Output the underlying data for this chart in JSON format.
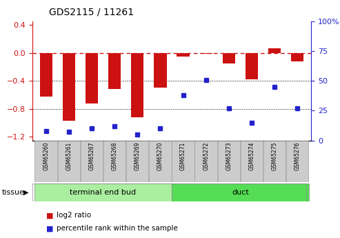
{
  "title": "GDS2115 / 11261",
  "samples": [
    "GSM65260",
    "GSM65261",
    "GSM65267",
    "GSM65268",
    "GSM65269",
    "GSM65270",
    "GSM65271",
    "GSM65272",
    "GSM65273",
    "GSM65274",
    "GSM65275",
    "GSM65276"
  ],
  "log2_ratio": [
    -0.62,
    -0.97,
    -0.72,
    -0.52,
    -0.92,
    -0.5,
    -0.05,
    -0.01,
    -0.15,
    -0.38,
    0.07,
    -0.12
  ],
  "percentile_rank": [
    8,
    7,
    10,
    12,
    5,
    10,
    38,
    51,
    27,
    15,
    45,
    27
  ],
  "bar_color": "#cc1111",
  "dot_color": "#2222cc",
  "ylim_left": [
    -1.25,
    0.45
  ],
  "ylim_right": [
    0,
    100
  ],
  "yticks_left": [
    -1.2,
    -0.8,
    -0.4,
    0.0,
    0.4
  ],
  "yticks_right": [
    0,
    25,
    50,
    75,
    100
  ],
  "dotted_lines": [
    -0.4,
    -0.8
  ],
  "groups": [
    {
      "label": "terminal end bud",
      "start": 0,
      "end": 6,
      "color": "#aaeea0"
    },
    {
      "label": "duct",
      "start": 6,
      "end": 12,
      "color": "#55dd55"
    }
  ],
  "tissue_label": "tissue",
  "legend_items": [
    {
      "label": "log2 ratio",
      "color": "#cc1111"
    },
    {
      "label": "percentile rank within the sample",
      "color": "#2222cc"
    }
  ]
}
